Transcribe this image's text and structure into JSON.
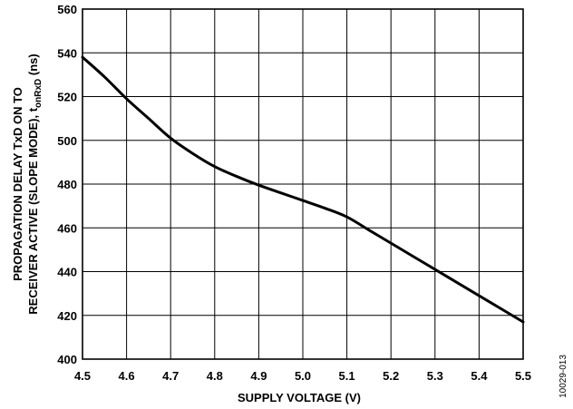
{
  "chart_data": {
    "type": "line",
    "title": "",
    "xlabel": "SUPPLY VOLTAGE (V)",
    "ylabel": {
      "line1": "PROPAGATION DELAY TxD ON TO",
      "line2_prefix": "RECEIVER ACTIVE (SLOPE MODE), t",
      "line2_subscript": "onRxD",
      "line2_suffix": " (ns)"
    },
    "xlim": [
      4.5,
      5.5
    ],
    "ylim": [
      400,
      560
    ],
    "x_ticks": [
      "4.5",
      "4.6",
      "4.7",
      "4.8",
      "4.9",
      "5.0",
      "5.1",
      "5.2",
      "5.3",
      "5.4",
      "5.5"
    ],
    "y_ticks": [
      "400",
      "420",
      "440",
      "460",
      "480",
      "500",
      "520",
      "540",
      "560"
    ],
    "grid": true,
    "series": [
      {
        "x": [
          4.5,
          4.55,
          4.6,
          4.65,
          4.7,
          4.75,
          4.8,
          4.85,
          4.9,
          4.95,
          5.0,
          5.05,
          5.1,
          5.15,
          5.2,
          5.25,
          5.3,
          5.35,
          5.4,
          5.45,
          5.5
        ],
        "y": [
          538,
          529,
          519,
          510,
          501,
          494,
          488,
          483.5,
          479.5,
          476,
          472.5,
          469,
          465,
          459,
          453,
          447,
          441,
          435,
          429,
          423,
          417
        ]
      }
    ]
  },
  "figure_id": "10029-013",
  "colors": {
    "line": "#000000",
    "grid": "#000000",
    "background": "#ffffff"
  }
}
